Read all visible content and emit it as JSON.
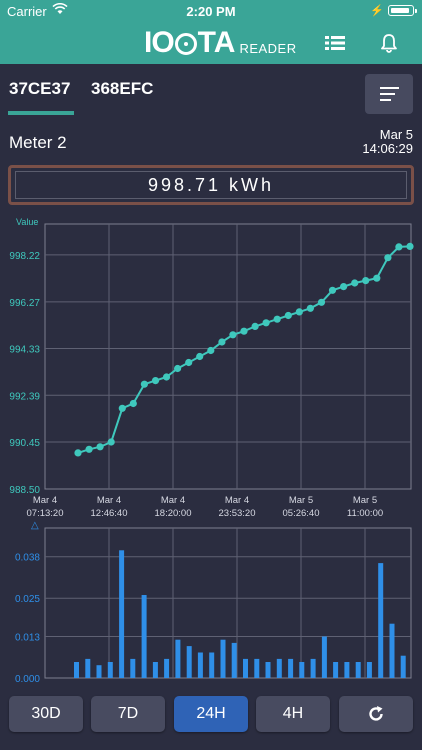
{
  "status_bar": {
    "carrier": "Carrier",
    "time": "2:20 PM"
  },
  "nav": {
    "logo_left": "IO",
    "logo_right": "TA",
    "logo_sub": "READER",
    "list_icon": "list-icon",
    "bell_icon": "bell-icon"
  },
  "tabs": [
    {
      "label": "37CE37",
      "active": true
    },
    {
      "label": "368EFC",
      "active": false
    }
  ],
  "sort_icon": "sort-lines-icon",
  "meter": {
    "name": "Meter 2",
    "date": "Mar 5",
    "time": "14:06:29",
    "reading": "998.71 kWh"
  },
  "colors": {
    "accent": "#3aa597",
    "line": "#3fc8bd",
    "bar": "#2f8fe8",
    "active_button": "#2f63b6",
    "reading_border": "#7a5048"
  },
  "chart_data": [
    {
      "type": "line",
      "ylabel": "Value",
      "yticks": [
        "998.22",
        "996.27",
        "994.33",
        "992.39",
        "990.45",
        "988.50"
      ],
      "ylim": [
        988.5,
        999.5
      ],
      "xticks": [
        [
          "Mar 4",
          "07:13:20"
        ],
        [
          "Mar 4",
          "12:46:40"
        ],
        [
          "Mar 4",
          "18:20:00"
        ],
        [
          "Mar 4",
          "23:53:20"
        ],
        [
          "Mar 5",
          "05:26:40"
        ],
        [
          "Mar 5",
          "11:00:00"
        ]
      ],
      "grid": true,
      "values": [
        990.0,
        990.15,
        990.25,
        990.45,
        991.85,
        992.05,
        992.85,
        993.0,
        993.15,
        993.5,
        993.75,
        994.0,
        994.25,
        994.6,
        994.9,
        995.05,
        995.25,
        995.4,
        995.55,
        995.7,
        995.85,
        996.0,
        996.25,
        996.75,
        996.9,
        997.05,
        997.15,
        997.25,
        998.1,
        998.55,
        998.57
      ]
    },
    {
      "type": "bar",
      "ylabel": "△",
      "yticks": [
        "0.038",
        "0.025",
        "0.013",
        "0.000"
      ],
      "ylim": [
        0,
        0.047
      ],
      "grid": true,
      "values": [
        0.005,
        0.006,
        0.004,
        0.005,
        0.04,
        0.006,
        0.026,
        0.005,
        0.006,
        0.012,
        0.01,
        0.008,
        0.008,
        0.012,
        0.011,
        0.006,
        0.006,
        0.005,
        0.006,
        0.006,
        0.005,
        0.006,
        0.013,
        0.005,
        0.005,
        0.005,
        0.005,
        0.036,
        0.017,
        0.007
      ]
    }
  ],
  "range_buttons": [
    {
      "label": "30D",
      "active": false
    },
    {
      "label": "7D",
      "active": false
    },
    {
      "label": "24H",
      "active": true
    },
    {
      "label": "4H",
      "active": false
    }
  ],
  "refresh_icon": "refresh-icon"
}
